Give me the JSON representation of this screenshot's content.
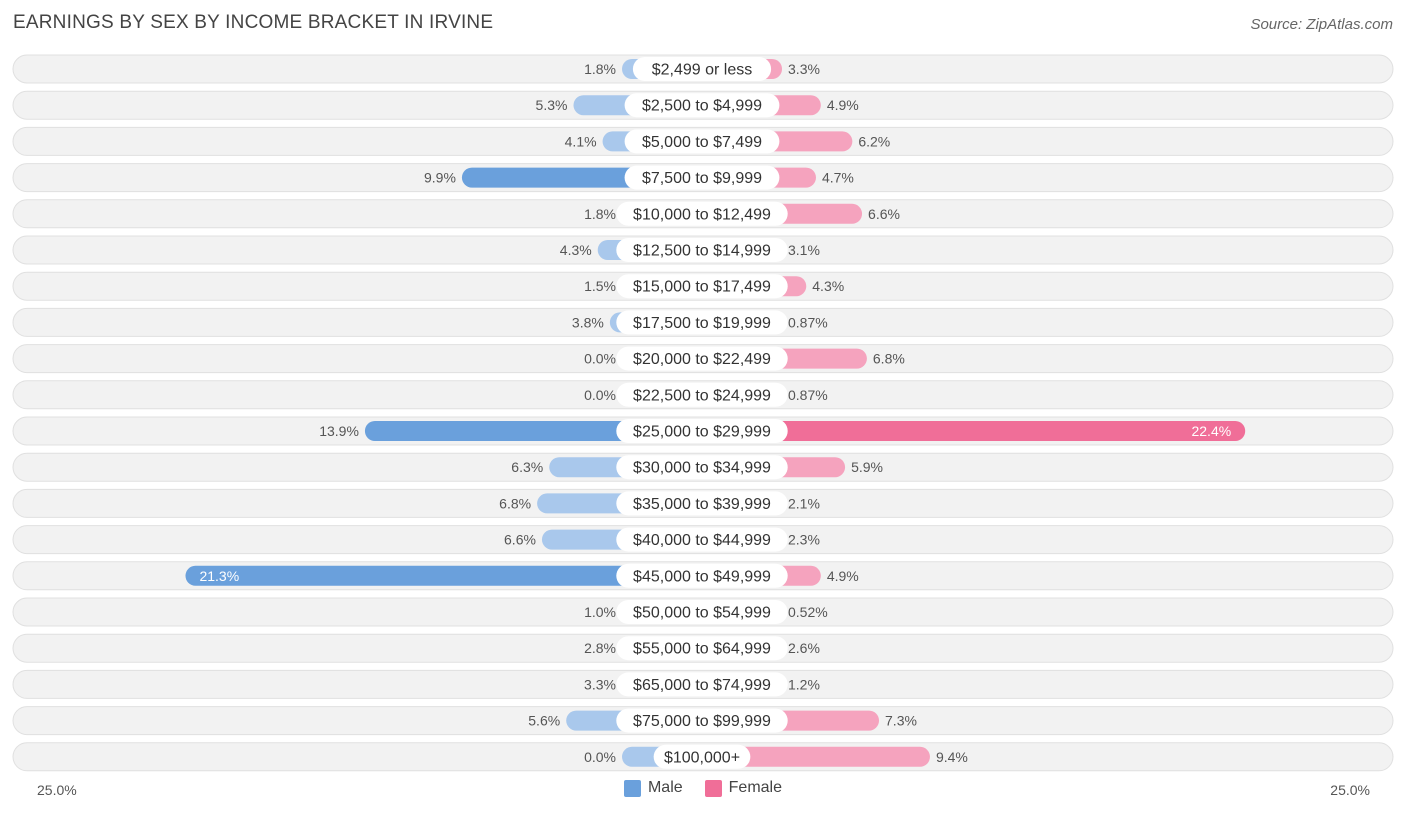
{
  "chart_data": {
    "type": "bar",
    "orientation": "horizontal-diverging",
    "title": "EARNINGS BY SEX BY INCOME BRACKET IN IRVINE",
    "source": "Source: ZipAtlas.com",
    "categories": [
      "$2,499 or less",
      "$2,500 to $4,999",
      "$5,000 to $7,499",
      "$7,500 to $9,999",
      "$10,000 to $12,499",
      "$12,500 to $14,999",
      "$15,000 to $17,499",
      "$17,500 to $19,999",
      "$20,000 to $22,499",
      "$22,500 to $24,999",
      "$25,000 to $29,999",
      "$30,000 to $34,999",
      "$35,000 to $39,999",
      "$40,000 to $44,999",
      "$45,000 to $49,999",
      "$50,000 to $54,999",
      "$55,000 to $64,999",
      "$65,000 to $74,999",
      "$75,000 to $99,999",
      "$100,000+"
    ],
    "series": [
      {
        "name": "Male",
        "color": "#6aa0dc",
        "color_light": "#a9c8ec",
        "values": [
          1.8,
          5.3,
          4.1,
          9.9,
          1.8,
          4.3,
          1.5,
          3.8,
          0.0,
          0.0,
          13.9,
          6.3,
          6.8,
          6.6,
          21.3,
          1.0,
          2.8,
          3.3,
          5.6,
          0.0
        ],
        "labels": [
          "1.8%",
          "5.3%",
          "4.1%",
          "9.9%",
          "1.8%",
          "4.3%",
          "1.5%",
          "3.8%",
          "0.0%",
          "0.0%",
          "13.9%",
          "6.3%",
          "6.8%",
          "6.6%",
          "21.3%",
          "1.0%",
          "2.8%",
          "3.3%",
          "5.6%",
          "0.0%"
        ]
      },
      {
        "name": "Female",
        "color": "#f06e98",
        "color_light": "#f5a3be",
        "values": [
          3.3,
          4.9,
          6.2,
          4.7,
          6.6,
          3.1,
          4.3,
          0.87,
          6.8,
          0.87,
          22.4,
          5.9,
          2.1,
          2.3,
          4.9,
          0.52,
          2.6,
          1.2,
          7.3,
          9.4
        ],
        "labels": [
          "3.3%",
          "4.9%",
          "6.2%",
          "4.7%",
          "6.6%",
          "3.1%",
          "4.3%",
          "0.87%",
          "6.8%",
          "0.87%",
          "22.4%",
          "5.9%",
          "2.1%",
          "2.3%",
          "4.9%",
          "0.52%",
          "2.6%",
          "1.2%",
          "7.3%",
          "9.4%"
        ]
      }
    ],
    "axis_max": 25.0,
    "axis_left_label": "25.0%",
    "axis_right_label": "25.0%",
    "legend": [
      "Male",
      "Female"
    ]
  }
}
